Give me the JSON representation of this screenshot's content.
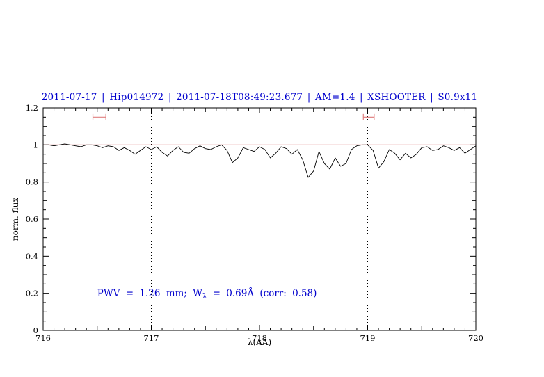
{
  "colors": {
    "title": "#0000cd",
    "annotation": "#0000cd",
    "spectrum": "#000000",
    "continuum": "#cc3333",
    "marker": "#e08080",
    "dotted_line": "#000000",
    "axis": "#000000"
  },
  "annotation": {
    "prefix": "PWV = 1.26 mm; W",
    "sub": "λ",
    "suffix": " = 0.69Å (corr: 0.58)"
  },
  "chart_data": {
    "type": "line",
    "title": "2011-07-17 | Hip014972 | 2011-07-18T08:49:23.677 | AM=1.4 | XSHOOTER | S0.9x11",
    "xlabel": "λ(AA)",
    "ylabel": "norm. flux",
    "xlim": [
      716,
      720
    ],
    "ylim": [
      0,
      1.2
    ],
    "grid": "off",
    "x_major_ticks": [
      716,
      717,
      718,
      719,
      720
    ],
    "x_tick_labels": [
      "716",
      "717",
      "718",
      "719",
      "720"
    ],
    "x_minor_step": 0.1,
    "y_major_ticks": [
      0,
      0.2,
      0.4,
      0.6,
      0.8,
      1,
      1.2
    ],
    "y_tick_labels": [
      "0",
      "0.2",
      "0.4",
      "0.6",
      "0.8",
      "1",
      "1.2"
    ],
    "y_minor_step": 0.05,
    "continuum_level": 1.0,
    "dotted_vlines": [
      717,
      719
    ],
    "range_markers": [
      {
        "x1": 716.46,
        "x2": 716.58,
        "y": 1.15
      },
      {
        "x1": 718.96,
        "x2": 719.06,
        "y": 1.15
      }
    ],
    "annotation_position": {
      "x": 716.5,
      "y": 0.2
    },
    "series": [
      {
        "name": "normalized spectrum",
        "x_start": 716.0,
        "x_step": 0.05,
        "y": [
          1.0,
          1.0,
          0.995,
          1.0,
          1.005,
          1.0,
          0.995,
          0.99,
          1.0,
          1.0,
          0.995,
          0.985,
          0.995,
          0.99,
          0.97,
          0.985,
          0.97,
          0.95,
          0.97,
          0.99,
          0.975,
          0.99,
          0.96,
          0.94,
          0.97,
          0.99,
          0.96,
          0.955,
          0.98,
          0.995,
          0.98,
          0.975,
          0.99,
          1.0,
          0.97,
          0.905,
          0.93,
          0.985,
          0.975,
          0.965,
          0.99,
          0.975,
          0.93,
          0.955,
          0.99,
          0.98,
          0.95,
          0.975,
          0.92,
          0.825,
          0.86,
          0.965,
          0.9,
          0.87,
          0.93,
          0.885,
          0.9,
          0.975,
          0.995,
          1.0,
          1.0,
          0.97,
          0.875,
          0.91,
          0.975,
          0.955,
          0.92,
          0.955,
          0.93,
          0.95,
          0.985,
          0.99,
          0.97,
          0.975,
          0.995,
          0.985,
          0.97,
          0.985,
          0.955,
          0.975,
          0.995
        ]
      }
    ]
  }
}
